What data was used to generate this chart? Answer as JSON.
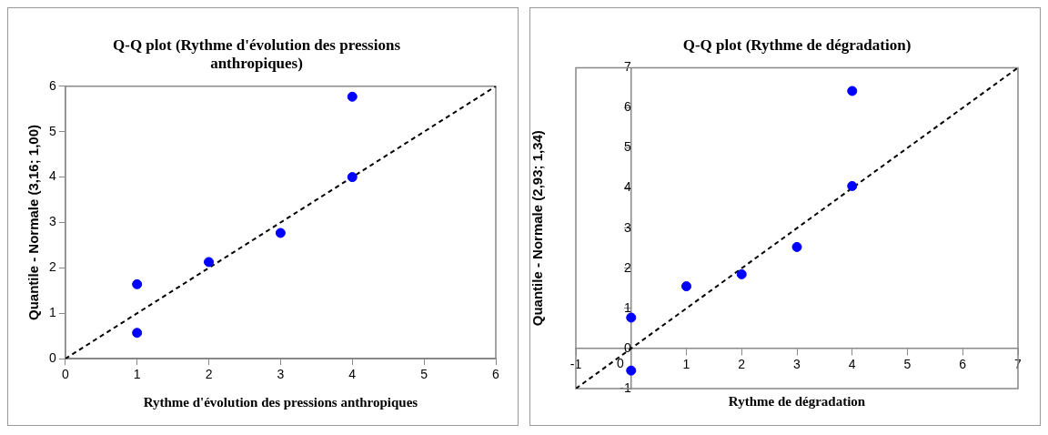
{
  "chart_data": [
    {
      "type": "scatter",
      "title": "Q-Q plot (Rythme d'évolution des pressions anthropiques)",
      "xlabel": "Rythme d'évolution des pressions anthropiques",
      "ylabel": "Quantile - Normale (3,16; 1,00)",
      "xlim": [
        0,
        6
      ],
      "ylim": [
        0,
        6
      ],
      "xticks": [
        0,
        1,
        2,
        3,
        4,
        5,
        6
      ],
      "yticks": [
        0,
        1,
        2,
        3,
        4,
        5,
        6
      ],
      "grid": false,
      "marker": "circle",
      "series": [
        {
          "type": "scatter",
          "color": "#0000ff",
          "x": [
            1,
            1,
            2,
            3,
            4,
            4
          ],
          "values": [
            0.57,
            1.64,
            2.13,
            2.77,
            4.0,
            5.77
          ]
        },
        {
          "type": "line",
          "color": "#000000",
          "line_style": "dashed",
          "marker": "none",
          "x": [
            0,
            6
          ],
          "values": [
            0,
            6
          ]
        }
      ]
    },
    {
      "type": "scatter",
      "title": "Q-Q plot (Rythme de dégradation)",
      "xlabel": "Rythme de dégradation",
      "ylabel": "Quantile - Normale (2,93; 1,34)",
      "xlim": [
        -1,
        7
      ],
      "ylim": [
        -1,
        7
      ],
      "xticks": [
        -1,
        0,
        1,
        2,
        3,
        4,
        5,
        6,
        7
      ],
      "yticks": [
        -1,
        0,
        1,
        2,
        3,
        4,
        5,
        6,
        7
      ],
      "grid": false,
      "marker": "circle",
      "series": [
        {
          "type": "scatter",
          "color": "#0000ff",
          "x": [
            0,
            0,
            1,
            2,
            3,
            4,
            4
          ],
          "values": [
            -0.55,
            0.77,
            1.55,
            1.85,
            2.53,
            4.05,
            6.42
          ]
        },
        {
          "type": "line",
          "color": "#000000",
          "line_style": "dashed",
          "marker": "none",
          "x": [
            -1,
            7
          ],
          "values": [
            -1,
            7
          ]
        }
      ]
    }
  ]
}
